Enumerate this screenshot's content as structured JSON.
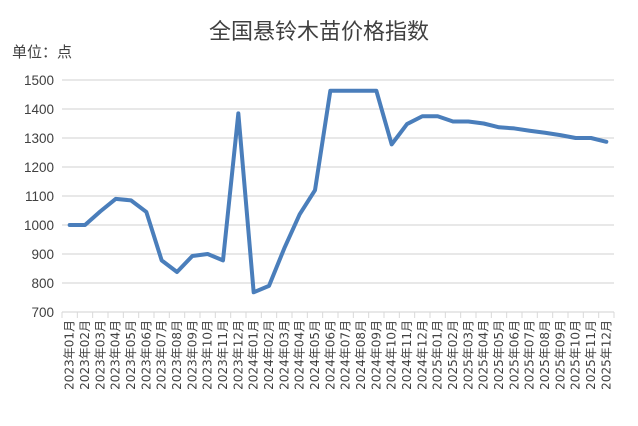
{
  "chart_data": {
    "type": "line",
    "title": "全国悬铃木苗价格指数",
    "ylabel": "单位：点",
    "xlabel": "",
    "ylim": [
      700,
      1500
    ],
    "yticks": [
      700,
      800,
      900,
      1000,
      1100,
      1200,
      1300,
      1400,
      1500
    ],
    "grid": true,
    "line_color": "#4a7ebb",
    "categories": [
      "2023年01月",
      "2023年02月",
      "2023年03月",
      "2023年04月",
      "2023年05月",
      "2023年06月",
      "2023年07月",
      "2023年08月",
      "2023年09月",
      "2023年10月",
      "2023年11月",
      "2023年12月",
      "2024年01月",
      "2024年02月",
      "2024年03月",
      "2024年04月",
      "2024年05月",
      "2024年06月",
      "2024年07月",
      "2024年08月",
      "2024年09月",
      "2024年10月",
      "2024年11月",
      "2024年12月",
      "2025年01月",
      "2025年02月",
      "2025年03月",
      "2025年04月",
      "2025年05月",
      "2025年06月",
      "2025年07月",
      "2025年08月",
      "2025年09月",
      "2025年10月",
      "2025年11月",
      "2025年12月"
    ],
    "values": [
      1000,
      1000,
      1047,
      1090,
      1085,
      1045,
      878,
      838,
      893,
      900,
      878,
      1385,
      768,
      790,
      920,
      1037,
      1120,
      1463,
      1463,
      1463,
      1463,
      1278,
      1348,
      1375,
      1375,
      1357,
      1357,
      1350,
      1337,
      1333,
      1325,
      1318,
      1310,
      1300,
      1300,
      1287
    ]
  }
}
